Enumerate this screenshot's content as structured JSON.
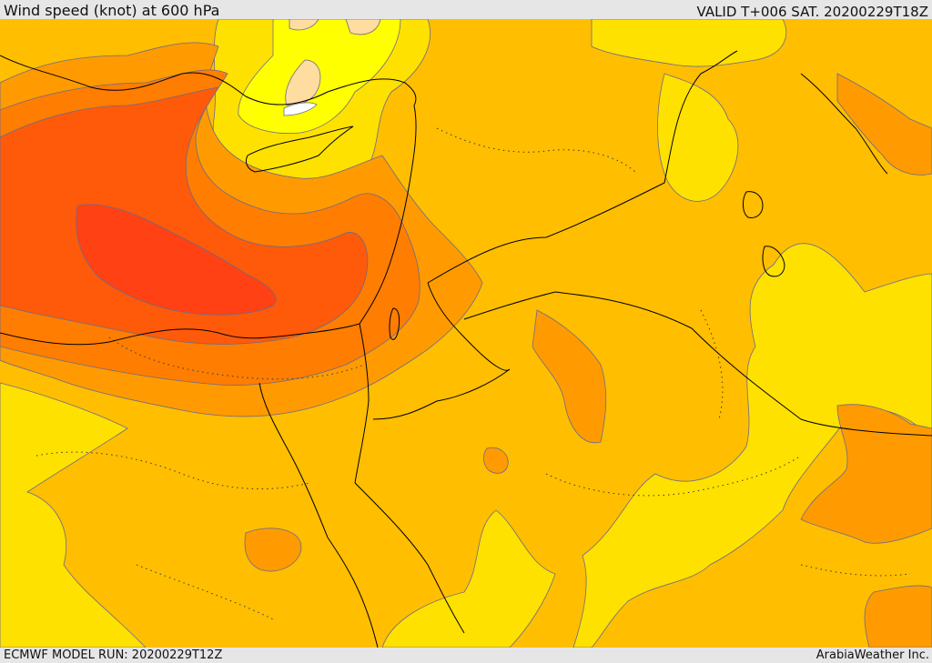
{
  "header": {
    "title": "Wind speed (knot) at 600 hPa",
    "valid": "VALID T+006 SAT. 20200229T18Z"
  },
  "footer": {
    "model_run": "ECMWF MODEL RUN: 20200229T12Z",
    "brand": "ArabiaWeather Inc."
  },
  "palette": {
    "band_lightest": "#ffffff",
    "band_pale_peach": "#ffdca0",
    "band_yellow": "#ffff00",
    "band_gold": "#ffe100",
    "band_amber": "#ffbe00",
    "band_orange": "#ff9b00",
    "band_dark_orange": "#ff7d00",
    "band_red_orange": "#ff5a0a",
    "band_red": "#ff4114",
    "contour_line": "#6b6b8a",
    "coastline": "#000000"
  }
}
